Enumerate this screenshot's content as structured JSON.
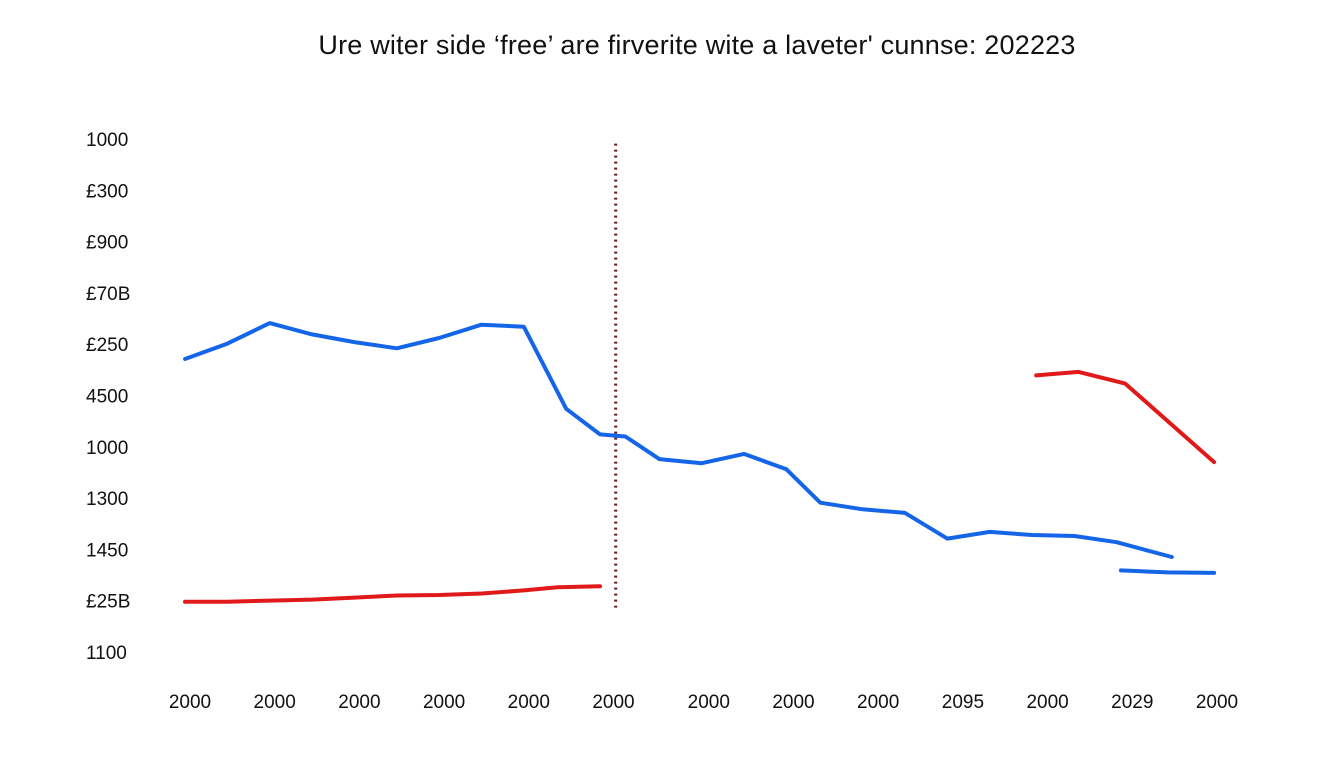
{
  "chart_data": {
    "type": "line",
    "title": "Ure witer side ‘free’ are firverite wite a laveter' cunnse: 202223",
    "xlabel": "",
    "ylabel": "",
    "y_tick_labels": [
      "1000",
      "£300",
      "£900",
      "£70B",
      "£250",
      "4500",
      "1000",
      "1300",
      "1450",
      "£25B",
      "1100"
    ],
    "x_tick_labels": [
      "2000",
      "2000",
      "2000",
      "2000",
      "2000",
      "2000",
      "2000",
      "2000",
      "2000",
      "2095",
      "2000",
      "2029",
      "2000"
    ],
    "x_tick_positions": [
      0,
      2,
      4,
      6,
      8,
      10,
      12.25,
      14.25,
      16.25,
      18.25,
      20.25,
      22.25,
      24.25
    ],
    "xlim": [
      0,
      24.25
    ],
    "ylim": [
      0,
      10
    ],
    "y_direction": "top-to-bottom tick order; values measured in tick steps from the top tick",
    "reference_line": {
      "x": 10.17,
      "style": "dotted",
      "color": "#6b1a1a",
      "y_from": 0.05,
      "y_to": 9.15
    },
    "grid": false,
    "legend": "none",
    "series": [
      {
        "color": "#1565e8",
        "points": [
          [
            0,
            4.25
          ],
          [
            1,
            3.95
          ],
          [
            2,
            3.55
          ],
          [
            3,
            3.77
          ],
          [
            4,
            3.92
          ],
          [
            5,
            4.04
          ],
          [
            6,
            3.84
          ],
          [
            7,
            3.58
          ],
          [
            8,
            3.62
          ],
          [
            9,
            5.22
          ],
          [
            9.8,
            5.72
          ],
          [
            10.4,
            5.76
          ],
          [
            11.2,
            6.2
          ],
          [
            12.2,
            6.28
          ],
          [
            13.2,
            6.1
          ],
          [
            14.2,
            6.4
          ],
          [
            15,
            7.05
          ],
          [
            16,
            7.18
          ],
          [
            17,
            7.25
          ],
          [
            18,
            7.75
          ],
          [
            19,
            7.62
          ],
          [
            20,
            7.68
          ],
          [
            21,
            7.7
          ],
          [
            22,
            7.82
          ],
          [
            23.3,
            8.11
          ]
        ]
      },
      {
        "color": "#1565e8",
        "points": [
          [
            22.1,
            8.37
          ],
          [
            23.2,
            8.41
          ],
          [
            24.3,
            8.42
          ]
        ]
      },
      {
        "color": "#e01a1a",
        "points": [
          [
            0,
            8.98
          ],
          [
            1,
            8.98
          ],
          [
            2,
            8.96
          ],
          [
            3,
            8.94
          ],
          [
            4,
            8.9
          ],
          [
            5,
            8.86
          ],
          [
            6,
            8.85
          ],
          [
            7,
            8.82
          ],
          [
            8,
            8.76
          ],
          [
            8.8,
            8.7
          ],
          [
            9.8,
            8.68
          ]
        ]
      },
      {
        "color": "#e01a1a",
        "points": [
          [
            20.1,
            4.57
          ],
          [
            21.1,
            4.5
          ],
          [
            22.2,
            4.73
          ],
          [
            24.3,
            6.26
          ]
        ]
      }
    ]
  }
}
